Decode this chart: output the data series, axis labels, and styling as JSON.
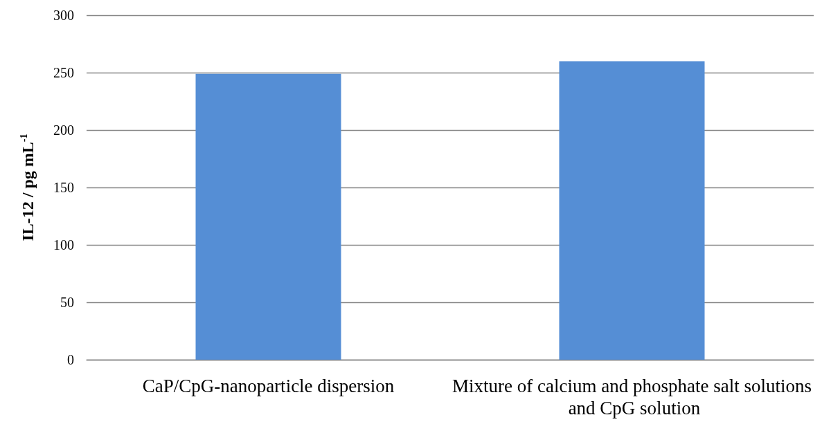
{
  "chart_data": {
    "type": "bar",
    "ylabel": "IL-12 / pg mL$^{-1}$",
    "categories": [
      "CaP/CpG-nanoparticle dispersion",
      "Mixture of calcium and phosphate salt solutions and CpG solution"
    ],
    "values": [
      249,
      260
    ],
    "color": "#558ed5",
    "ylim": [
      0,
      300
    ],
    "yticks": [
      0,
      50,
      100,
      150,
      200,
      250,
      300
    ],
    "grid": "y"
  }
}
